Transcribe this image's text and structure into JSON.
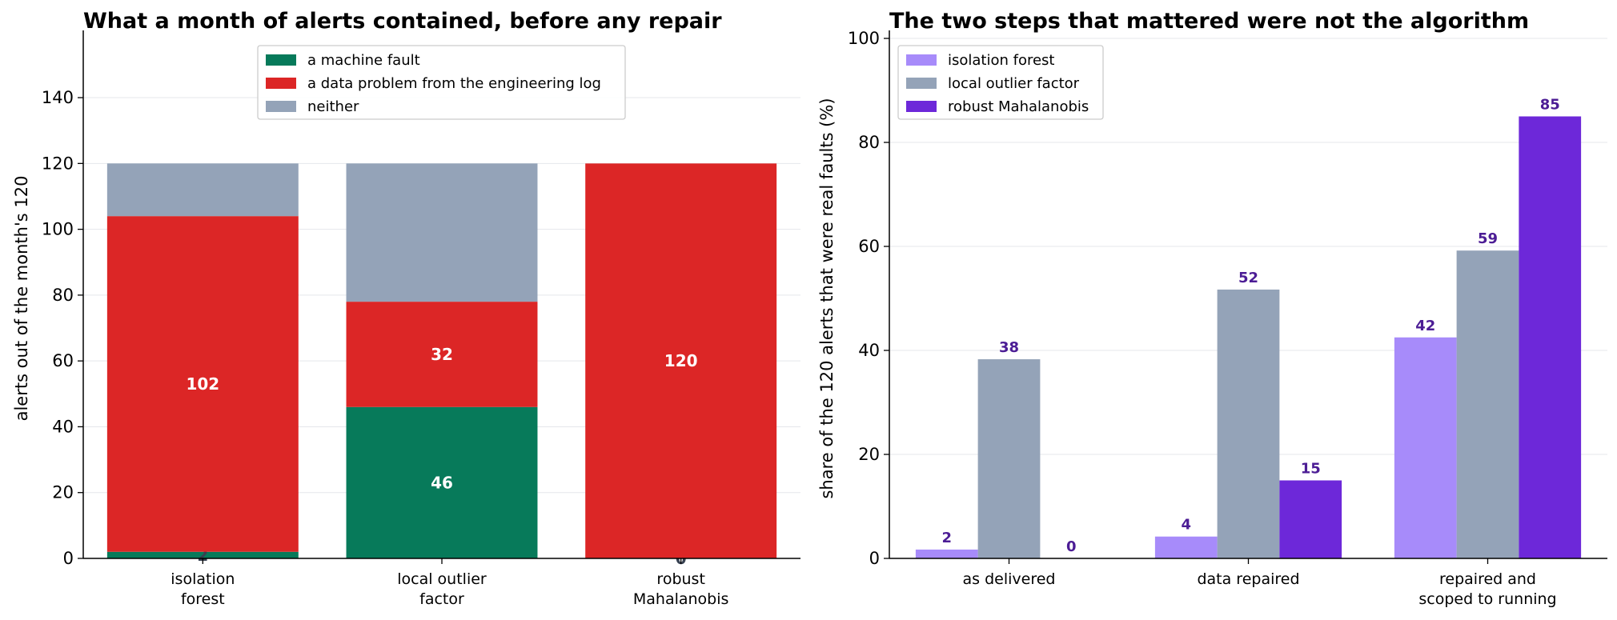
{
  "chart_data": [
    {
      "type": "bar",
      "stacked": true,
      "title": "What a month of alerts contained, before any repair",
      "xlabel": "",
      "ylabel": "alerts out of the month's 120",
      "ylim": [
        0,
        158
      ],
      "yticks": [
        0,
        20,
        40,
        60,
        80,
        100,
        120,
        140
      ],
      "grid": "horizontal",
      "legend_position": "top-center",
      "categories": [
        [
          "isolation",
          "forest"
        ],
        [
          "local outlier",
          "factor"
        ],
        [
          "robust",
          "Mahalanobis"
        ]
      ],
      "series": [
        {
          "name": "a machine fault",
          "values": [
            2,
            46,
            0
          ],
          "color": "#077a5a",
          "labels": [
            "2",
            "46",
            "0"
          ]
        },
        {
          "name": "a data problem from the engineering log",
          "values": [
            102,
            32,
            120
          ],
          "color": "#dc2626",
          "labels": [
            "102",
            "32",
            "120"
          ]
        },
        {
          "name": "neither",
          "values": [
            16,
            42,
            0
          ],
          "color": "#94a3b8"
        }
      ]
    },
    {
      "type": "bar",
      "stacked": false,
      "title": "The two steps that mattered were not the algorithm",
      "xlabel": "",
      "ylabel": "share of the 120 alerts that were real faults (%)",
      "ylim": [
        0,
        100
      ],
      "yticks": [
        0,
        20,
        40,
        60,
        80,
        100
      ],
      "grid": "horizontal",
      "legend_position": "top-left",
      "categories": [
        [
          "as delivered"
        ],
        [
          "data repaired"
        ],
        [
          "repaired and",
          "scoped to running"
        ]
      ],
      "series": [
        {
          "name": "isolation forest",
          "values": [
            1.7,
            4.2,
            42.5
          ],
          "labels": [
            "2",
            "4",
            "42"
          ],
          "color": "#a78bfa"
        },
        {
          "name": "local outlier factor",
          "values": [
            38.3,
            51.7,
            59.2
          ],
          "labels": [
            "38",
            "52",
            "59"
          ],
          "color": "#94a3b8"
        },
        {
          "name": "robust Mahalanobis",
          "values": [
            0,
            15.0,
            85.0
          ],
          "labels": [
            "0",
            "15",
            "85"
          ],
          "color": "#6d28d9"
        }
      ],
      "label_color": "#4c1d95"
    }
  ]
}
